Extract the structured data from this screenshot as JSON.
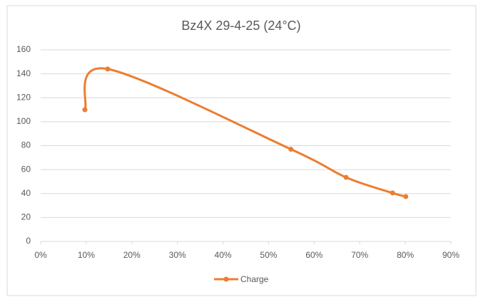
{
  "chart_data": {
    "type": "scatter",
    "title": "Bz4X   29-4-25   (24°C)",
    "x": [
      9.7,
      14.7,
      54.9,
      67,
      77.2,
      80.1
    ],
    "series": [
      {
        "name": "Charge",
        "color": "#ed7d31",
        "values": [
          110,
          144,
          77,
          53.5,
          40.5,
          37.5
        ]
      }
    ],
    "smooth": true,
    "xlim": [
      0,
      90
    ],
    "xticks": [
      {
        "value": 0,
        "label": "0%"
      },
      {
        "value": 10,
        "label": "10%"
      },
      {
        "value": 20,
        "label": "20%"
      },
      {
        "value": 30,
        "label": "30%"
      },
      {
        "value": 40,
        "label": "40%"
      },
      {
        "value": 50,
        "label": "50%"
      },
      {
        "value": 60,
        "label": "60%"
      },
      {
        "value": 70,
        "label": "70%"
      },
      {
        "value": 80,
        "label": "80%"
      },
      {
        "value": 90,
        "label": "90%"
      }
    ],
    "ylim": [
      0,
      160
    ],
    "yticks": [
      0,
      20,
      40,
      60,
      80,
      100,
      120,
      140,
      160
    ],
    "grid": true,
    "legend": "bottom"
  }
}
